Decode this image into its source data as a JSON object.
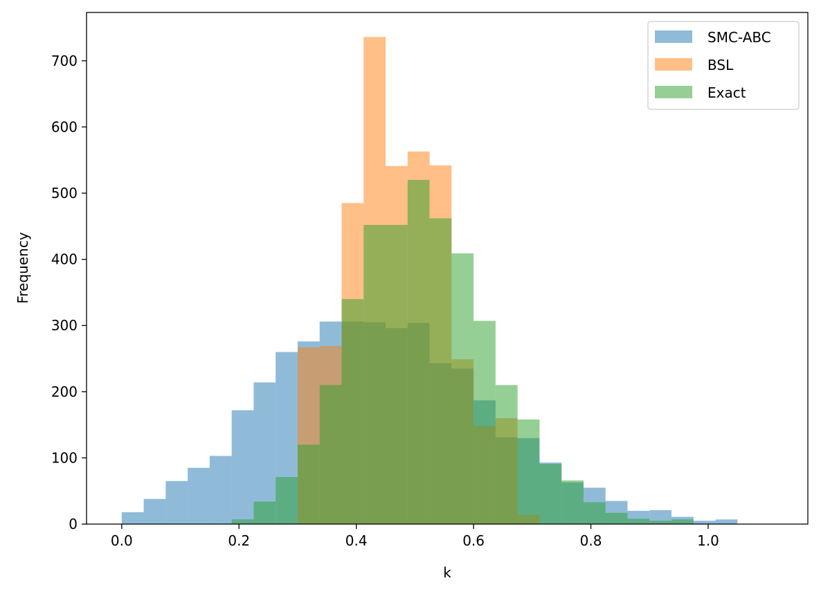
{
  "chart_data": {
    "type": "bar",
    "title": "",
    "xlabel": "k",
    "ylabel": "Frequency",
    "xlim": [
      -0.06,
      1.17
    ],
    "ylim": [
      0,
      773
    ],
    "xticks": [
      "0.0",
      "0.2",
      "0.4",
      "0.6",
      "0.8",
      "1.0"
    ],
    "yticks": [
      "0",
      "100",
      "200",
      "300",
      "400",
      "500",
      "600",
      "700"
    ],
    "legend_position": "top-right",
    "bar_opacity": 0.5,
    "series": [
      {
        "name": "SMC-ABC",
        "color": "#1f77b4",
        "bins": [
          {
            "x0": 0.0,
            "x1": 0.0375,
            "value": 18
          },
          {
            "x0": 0.0375,
            "x1": 0.075,
            "value": 38
          },
          {
            "x0": 0.075,
            "x1": 0.1125,
            "value": 65
          },
          {
            "x0": 0.1125,
            "x1": 0.15,
            "value": 85
          },
          {
            "x0": 0.15,
            "x1": 0.1875,
            "value": 103
          },
          {
            "x0": 0.1875,
            "x1": 0.225,
            "value": 172
          },
          {
            "x0": 0.225,
            "x1": 0.2625,
            "value": 214
          },
          {
            "x0": 0.2625,
            "x1": 0.3,
            "value": 260
          },
          {
            "x0": 0.3,
            "x1": 0.3375,
            "value": 276
          },
          {
            "x0": 0.3375,
            "x1": 0.375,
            "value": 306
          },
          {
            "x0": 0.375,
            "x1": 0.4125,
            "value": 306
          },
          {
            "x0": 0.4125,
            "x1": 0.45,
            "value": 305
          },
          {
            "x0": 0.45,
            "x1": 0.4875,
            "value": 296
          },
          {
            "x0": 0.4875,
            "x1": 0.525,
            "value": 304
          },
          {
            "x0": 0.525,
            "x1": 0.5625,
            "value": 243
          },
          {
            "x0": 0.5625,
            "x1": 0.6,
            "value": 235
          },
          {
            "x0": 0.6,
            "x1": 0.6375,
            "value": 187
          },
          {
            "x0": 0.6375,
            "x1": 0.675,
            "value": 131
          },
          {
            "x0": 0.675,
            "x1": 0.7125,
            "value": 130
          },
          {
            "x0": 0.7125,
            "x1": 0.75,
            "value": 93
          },
          {
            "x0": 0.75,
            "x1": 0.7875,
            "value": 63
          },
          {
            "x0": 0.7875,
            "x1": 0.825,
            "value": 55
          },
          {
            "x0": 0.825,
            "x1": 0.8625,
            "value": 35
          },
          {
            "x0": 0.8625,
            "x1": 0.9,
            "value": 20
          },
          {
            "x0": 0.9,
            "x1": 0.9375,
            "value": 21
          },
          {
            "x0": 0.9375,
            "x1": 0.975,
            "value": 11
          },
          {
            "x0": 0.975,
            "x1": 1.0125,
            "value": 5
          },
          {
            "x0": 1.0125,
            "x1": 1.05,
            "value": 7
          }
        ]
      },
      {
        "name": "BSL",
        "color": "#ff7f0e",
        "bins": [
          {
            "x0": 0.3,
            "x1": 0.3375,
            "value": 267
          },
          {
            "x0": 0.3375,
            "x1": 0.375,
            "value": 269
          },
          {
            "x0": 0.375,
            "x1": 0.4125,
            "value": 485
          },
          {
            "x0": 0.4125,
            "x1": 0.45,
            "value": 736
          },
          {
            "x0": 0.45,
            "x1": 0.4875,
            "value": 541
          },
          {
            "x0": 0.4875,
            "x1": 0.525,
            "value": 563
          },
          {
            "x0": 0.525,
            "x1": 0.5625,
            "value": 542
          },
          {
            "x0": 0.5625,
            "x1": 0.6,
            "value": 249
          },
          {
            "x0": 0.6,
            "x1": 0.6375,
            "value": 148
          },
          {
            "x0": 0.6375,
            "x1": 0.675,
            "value": 160
          },
          {
            "x0": 0.675,
            "x1": 0.7125,
            "value": 14
          }
        ]
      },
      {
        "name": "Exact",
        "color": "#2ca02c",
        "bins": [
          {
            "x0": 0.1875,
            "x1": 0.225,
            "value": 7
          },
          {
            "x0": 0.225,
            "x1": 0.2625,
            "value": 34
          },
          {
            "x0": 0.2625,
            "x1": 0.3,
            "value": 71
          },
          {
            "x0": 0.3,
            "x1": 0.3375,
            "value": 120
          },
          {
            "x0": 0.3375,
            "x1": 0.375,
            "value": 210
          },
          {
            "x0": 0.375,
            "x1": 0.4125,
            "value": 340
          },
          {
            "x0": 0.4125,
            "x1": 0.45,
            "value": 452
          },
          {
            "x0": 0.45,
            "x1": 0.4875,
            "value": 452
          },
          {
            "x0": 0.4875,
            "x1": 0.525,
            "value": 520
          },
          {
            "x0": 0.525,
            "x1": 0.5625,
            "value": 462
          },
          {
            "x0": 0.5625,
            "x1": 0.6,
            "value": 409
          },
          {
            "x0": 0.6,
            "x1": 0.6375,
            "value": 307
          },
          {
            "x0": 0.6375,
            "x1": 0.675,
            "value": 210
          },
          {
            "x0": 0.675,
            "x1": 0.7125,
            "value": 158
          },
          {
            "x0": 0.7125,
            "x1": 0.75,
            "value": 91
          },
          {
            "x0": 0.75,
            "x1": 0.7875,
            "value": 66
          },
          {
            "x0": 0.7875,
            "x1": 0.825,
            "value": 33
          },
          {
            "x0": 0.825,
            "x1": 0.8625,
            "value": 17
          },
          {
            "x0": 0.8625,
            "x1": 0.9,
            "value": 8
          },
          {
            "x0": 0.9,
            "x1": 0.9375,
            "value": 5
          },
          {
            "x0": 0.9375,
            "x1": 0.975,
            "value": 7
          }
        ]
      }
    ]
  }
}
